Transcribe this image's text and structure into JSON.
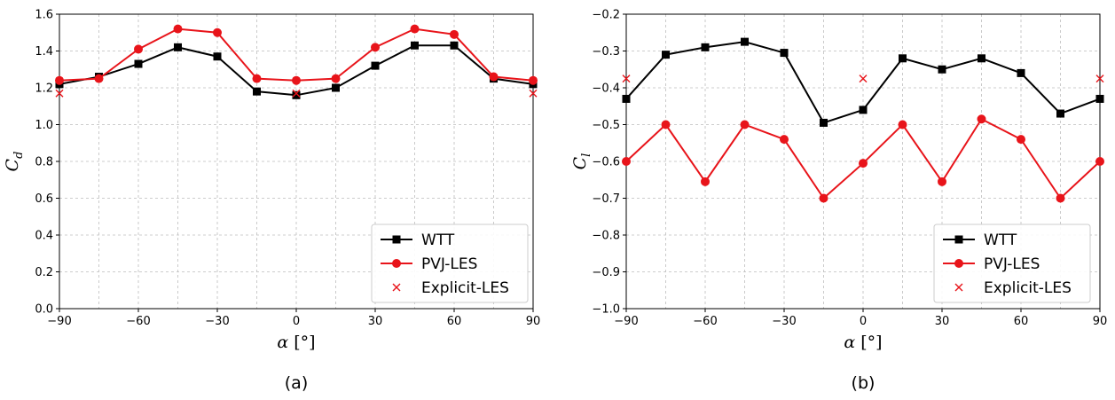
{
  "chart_data": [
    {
      "type": "line",
      "panel_label": "(a)",
      "xlabel_symbol": "α",
      "xlabel_unit": "[°]",
      "ylabel_symbol": "C",
      "ylabel_sub": "d",
      "xlim": [
        -90,
        90
      ],
      "ylim": [
        0.0,
        1.6
      ],
      "xticks": [
        -90,
        -60,
        -30,
        0,
        30,
        60,
        90
      ],
      "xtick_labels": [
        "−90",
        "−60",
        "−30",
        "0",
        "30",
        "60",
        "90"
      ],
      "yticks": [
        0.0,
        0.2,
        0.4,
        0.6,
        0.8,
        1.0,
        1.2,
        1.4,
        1.6
      ],
      "ytick_labels": [
        "0.0",
        "0.2",
        "0.4",
        "0.6",
        "0.8",
        "1.0",
        "1.2",
        "1.4",
        "1.6"
      ],
      "grid": true,
      "legend_position": "lower-right",
      "series": [
        {
          "name": "WTT",
          "color": "#000000",
          "marker": "square",
          "line": true,
          "x": [
            -90,
            -75,
            -60,
            -45,
            -30,
            -15,
            0,
            15,
            30,
            45,
            60,
            75,
            90
          ],
          "y": [
            1.22,
            1.26,
            1.33,
            1.42,
            1.37,
            1.18,
            1.16,
            1.2,
            1.32,
            1.43,
            1.43,
            1.25,
            1.22
          ]
        },
        {
          "name": "PVJ-LES",
          "color": "#e8141a",
          "marker": "circle",
          "line": true,
          "x": [
            -90,
            -75,
            -60,
            -45,
            -30,
            -15,
            0,
            15,
            30,
            45,
            60,
            75,
            90
          ],
          "y": [
            1.24,
            1.25,
            1.41,
            1.52,
            1.5,
            1.25,
            1.24,
            1.25,
            1.42,
            1.52,
            1.49,
            1.26,
            1.24
          ]
        },
        {
          "name": "Explicit-LES",
          "color": "#e8141a",
          "marker": "x",
          "line": false,
          "x": [
            -90,
            0,
            90
          ],
          "y": [
            1.17,
            1.17,
            1.17
          ]
        }
      ]
    },
    {
      "type": "line",
      "panel_label": "(b)",
      "xlabel_symbol": "α",
      "xlabel_unit": "[°]",
      "ylabel_symbol": "C",
      "ylabel_sub": "l",
      "xlim": [
        -90,
        90
      ],
      "ylim": [
        -1.0,
        -0.2
      ],
      "xticks": [
        -90,
        -60,
        -30,
        0,
        30,
        60,
        90
      ],
      "xtick_labels": [
        "−90",
        "−60",
        "−30",
        "0",
        "30",
        "60",
        "90"
      ],
      "yticks": [
        -1.0,
        -0.9,
        -0.8,
        -0.7,
        -0.6,
        -0.5,
        -0.4,
        -0.3,
        -0.2
      ],
      "ytick_labels": [
        "−1.0",
        "−0.9",
        "−0.8",
        "−0.7",
        "−0.6",
        "−0.5",
        "−0.4",
        "−0.3",
        "−0.2"
      ],
      "grid": true,
      "legend_position": "lower-right",
      "series": [
        {
          "name": "WTT",
          "color": "#000000",
          "marker": "square",
          "line": true,
          "x": [
            -90,
            -75,
            -60,
            -45,
            -30,
            -15,
            0,
            15,
            30,
            45,
            60,
            75,
            90
          ],
          "y": [
            -0.43,
            -0.31,
            -0.29,
            -0.275,
            -0.305,
            -0.495,
            -0.46,
            -0.32,
            -0.35,
            -0.32,
            -0.36,
            -0.47,
            -0.43
          ]
        },
        {
          "name": "PVJ-LES",
          "color": "#e8141a",
          "marker": "circle",
          "line": true,
          "x": [
            -90,
            -75,
            -60,
            -45,
            -30,
            -15,
            0,
            15,
            30,
            45,
            60,
            75,
            90
          ],
          "y": [
            -0.6,
            -0.5,
            -0.655,
            -0.5,
            -0.54,
            -0.7,
            -0.605,
            -0.5,
            -0.655,
            -0.485,
            -0.54,
            -0.7,
            -0.6
          ]
        },
        {
          "name": "Explicit-LES",
          "color": "#e8141a",
          "marker": "x",
          "line": false,
          "x": [
            -90,
            0,
            90
          ],
          "y": [
            -0.375,
            -0.375,
            -0.375
          ]
        }
      ]
    }
  ]
}
